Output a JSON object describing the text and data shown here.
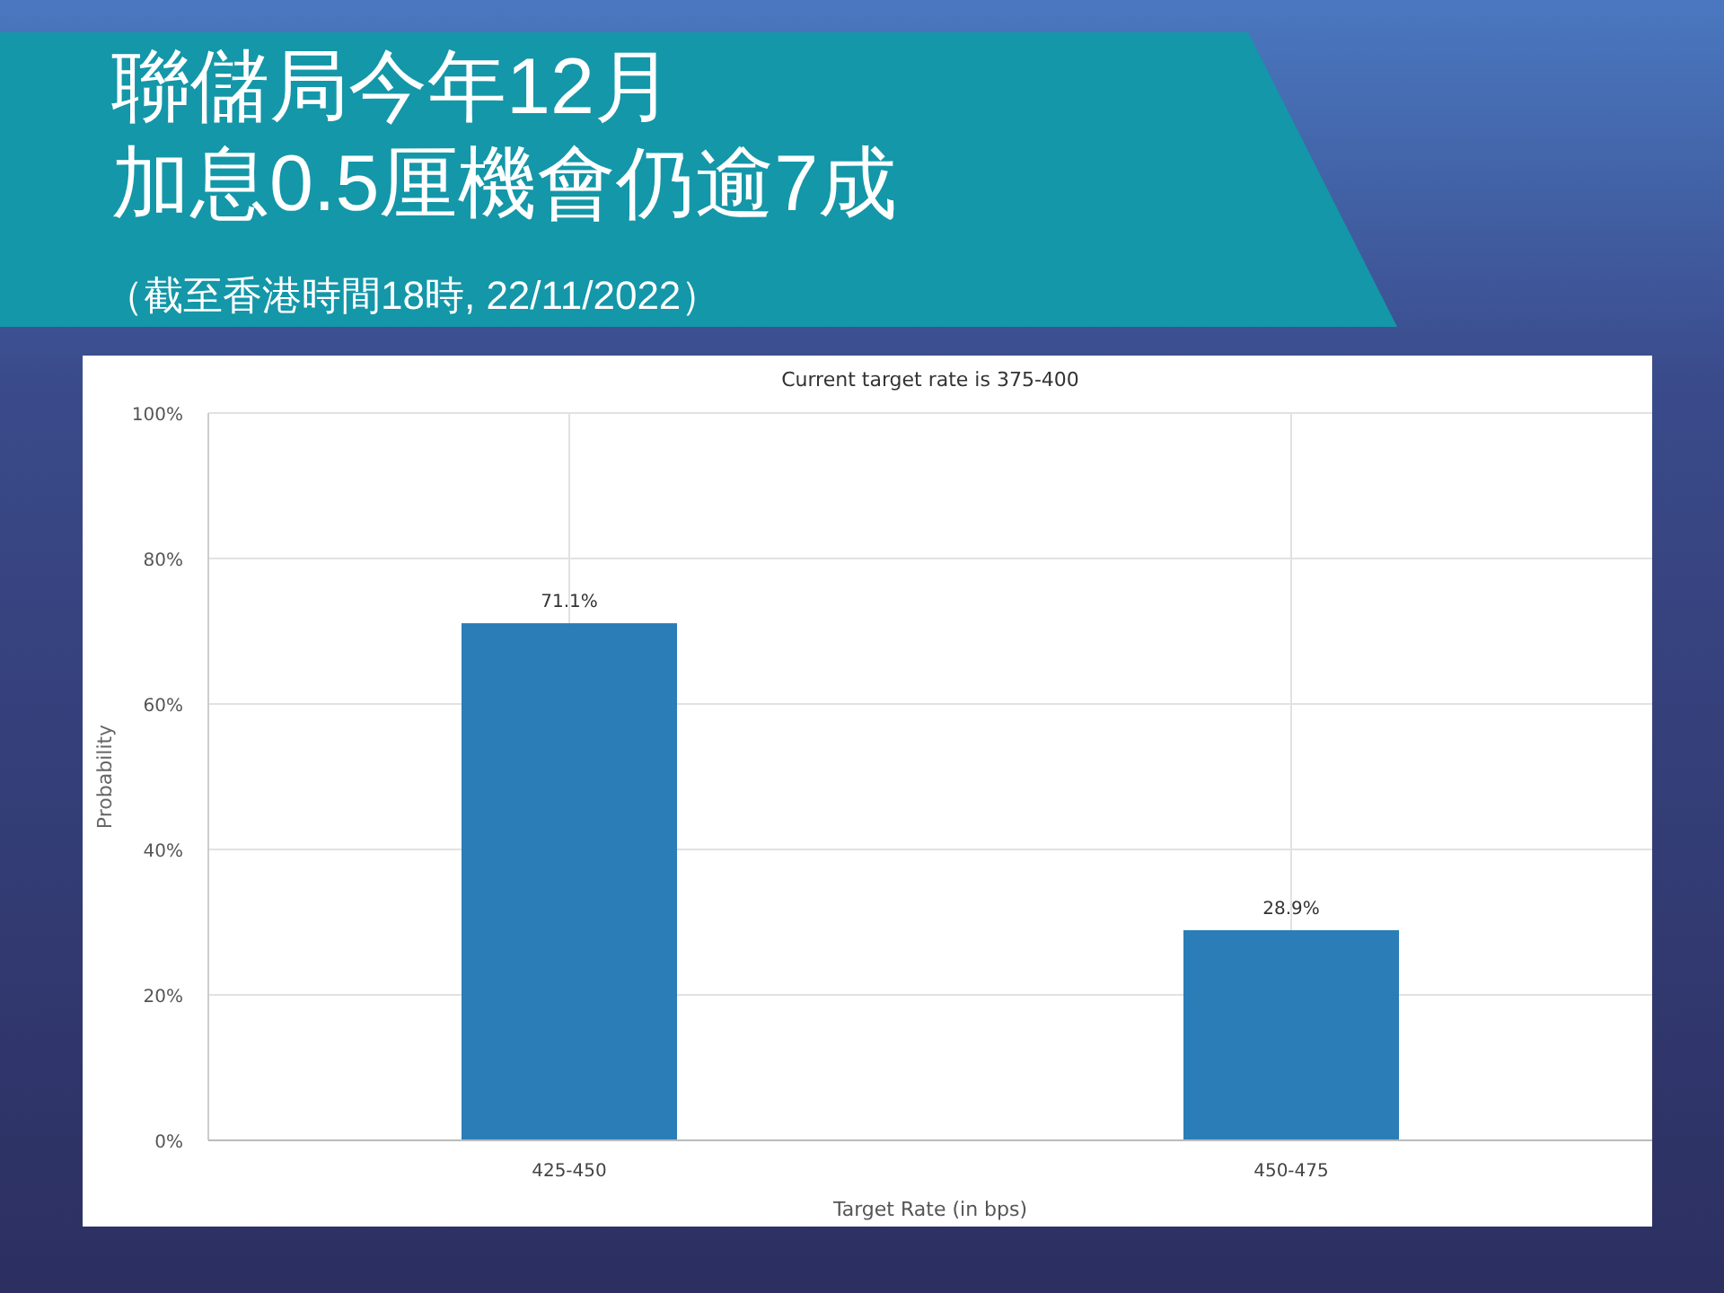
{
  "chart_data": {
    "type": "bar",
    "title": "聯儲局今年12月",
    "subtitle": "加息0.5厘機會仍逾7成",
    "annotations": [
      "（截至香港時間18時, 22/11/2022）",
      "Current target rate is 375-400"
    ],
    "xlabel": "Target Rate (in bps)",
    "ylabel": "Probability",
    "categories": [
      "425-450",
      "450-475"
    ],
    "values": [
      71.1,
      28.9
    ],
    "value_labels": [
      "71.1%",
      "28.9%"
    ],
    "color": "#2a7db7",
    "ylim": [
      0,
      100
    ],
    "yticks": [
      {
        "value": 0,
        "label": "0%"
      },
      {
        "value": 20,
        "label": "20%"
      },
      {
        "value": 40,
        "label": "40%"
      },
      {
        "value": 60,
        "label": "60%"
      },
      {
        "value": 80,
        "label": "80%"
      },
      {
        "value": 100,
        "label": "100%"
      }
    ],
    "grid": true
  }
}
